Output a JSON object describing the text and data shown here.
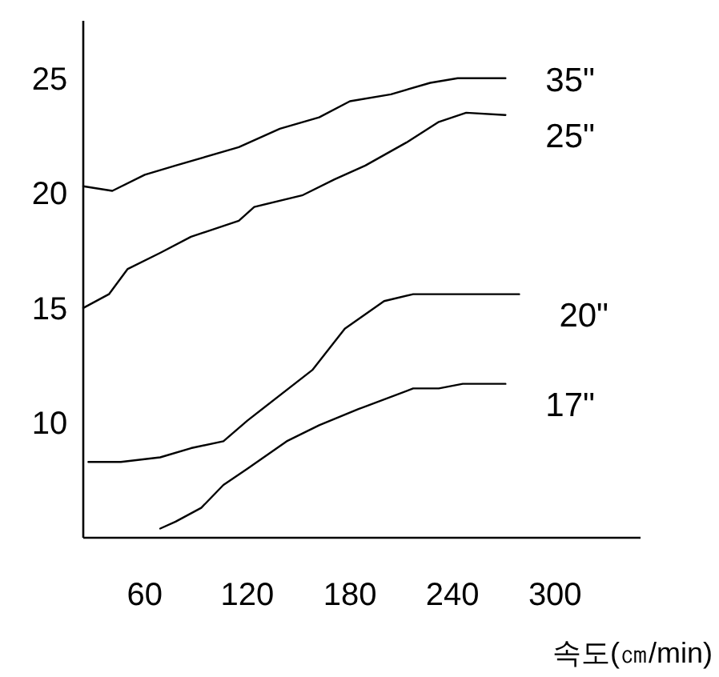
{
  "chart_data": {
    "type": "line",
    "xlabel": "속도(㎝/min)",
    "xlim": [
      24,
      350
    ],
    "ylim": [
      5,
      27.5
    ],
    "xticks": [
      60,
      120,
      180,
      240,
      300
    ],
    "yticks": [
      10,
      15,
      20,
      25
    ],
    "grid": false,
    "legend": false,
    "marker": "none",
    "line_style": "solid",
    "series": [
      {
        "name": "35\"",
        "color": "#000000",
        "x": [
          24,
          41,
          60,
          78,
          115,
          139,
          162,
          180,
          204,
          227,
          243,
          271
        ],
        "values": [
          20.3,
          20.1,
          20.8,
          21.2,
          22.0,
          22.8,
          23.3,
          24.0,
          24.3,
          24.8,
          25.0,
          25.0
        ]
      },
      {
        "name": "25\"",
        "color": "#000000",
        "x": [
          24,
          39,
          50,
          69,
          87,
          115,
          124,
          152,
          171,
          189,
          213,
          232,
          248,
          271
        ],
        "values": [
          15.0,
          15.6,
          16.7,
          17.4,
          18.1,
          18.8,
          19.4,
          19.9,
          20.6,
          21.2,
          22.2,
          23.1,
          23.5,
          23.4
        ]
      },
      {
        "name": "20\"",
        "color": "#000000",
        "x": [
          27,
          46,
          69,
          87,
          106,
          120,
          158,
          177,
          200,
          217,
          279
        ],
        "values": [
          8.3,
          8.3,
          8.5,
          8.9,
          9.2,
          10.1,
          12.3,
          14.1,
          15.3,
          15.6,
          15.6
        ]
      },
      {
        "name": "17\"",
        "color": "#000000",
        "x": [
          69,
          78,
          93,
          106,
          120,
          143,
          162,
          185,
          217,
          232,
          246,
          271
        ],
        "values": [
          5.4,
          5.7,
          6.3,
          7.3,
          8.0,
          9.2,
          9.9,
          10.6,
          11.5,
          11.5,
          11.7,
          11.7
        ]
      }
    ]
  }
}
